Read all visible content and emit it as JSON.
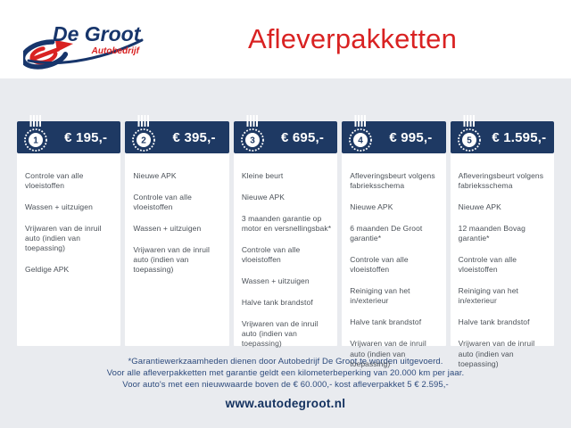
{
  "brand": {
    "name": "De Groot",
    "sub": "Autobedrijf"
  },
  "header": {
    "title": "Afleverpakketten"
  },
  "packages": [
    {
      "number": "1",
      "price": "€ 195,-",
      "items": [
        "Controle van alle vloeistoffen",
        "Wassen + uitzuigen",
        "Vrijwaren van de inruil auto (indien van toepassing)",
        "Geldige APK"
      ]
    },
    {
      "number": "2",
      "price": "€ 395,-",
      "items": [
        "Nieuwe APK",
        "Controle van alle vloeistoffen",
        "Wassen + uitzuigen",
        "Vrijwaren van de inruil auto (indien van toepassing)"
      ]
    },
    {
      "number": "3",
      "price": "€ 695,-",
      "items": [
        "Kleine beurt",
        "Nieuwe APK",
        "3 maanden garantie op motor en versnellingsbak*",
        "Controle van alle vloeistoffen",
        "Wassen + uitzuigen",
        "Halve tank brandstof",
        "Vrijwaren van de inruil auto (indien van toepassing)"
      ]
    },
    {
      "number": "4",
      "price": "€ 995,-",
      "items": [
        "Afleveringsbeurt volgens fabrieksschema",
        "Nieuwe APK",
        "6 maanden De Groot garantie*",
        "Controle van alle vloeistoffen",
        "Reiniging van het in/exterieur",
        "Halve tank brandstof",
        "Vrijwaren van de inruil auto (indien van toepassing)"
      ]
    },
    {
      "number": "5",
      "price": "€ 1.595,-",
      "items": [
        "Afleveringsbeurt volgens fabrieksschema",
        "Nieuwe APK",
        "12 maanden Bovag garantie*",
        "Controle van alle vloeistoffen",
        "Reiniging van het in/exterieur",
        "Halve tank brandstof",
        "Vrijwaren van de inruil auto (indien van toepassing)"
      ]
    }
  ],
  "footer": {
    "notes": [
      "*Garantiewerkzaamheden dienen door Autobedrijf De Groot te worden uitgevoerd.",
      "Voor alle afleverpakketten met garantie geldt een kilometerbeperking van 20.000 km per jaar.",
      "Voor auto's met een nieuwwaarde boven de € 60.000,- kost afleverpakket 5 € 2.595,-"
    ],
    "website": "www.autodegroot.nl"
  },
  "colors": {
    "navy": "#1e3963",
    "red": "#d92222",
    "background_gray": "#e9ebef",
    "card_white": "#ffffff",
    "body_text": "#4b5158",
    "footer_text": "#2c4a7c"
  }
}
